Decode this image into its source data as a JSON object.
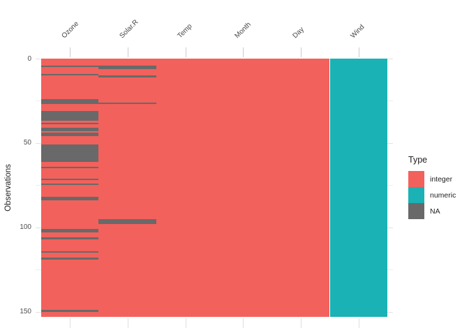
{
  "chart_data": {
    "type": "heatmap",
    "title": "",
    "ylabel": "Observations",
    "n_rows": 153,
    "y_ticks": [
      0,
      50,
      100,
      150
    ],
    "y_minor_ticks": [
      25,
      75,
      125
    ],
    "legend": {
      "title": "Type",
      "position": "right",
      "entries": [
        {
          "label": "integer",
          "color": "#F2615C"
        },
        {
          "label": "numeric",
          "color": "#1AB2B5"
        },
        {
          "label": "NA",
          "color": "#696969"
        }
      ]
    },
    "type_colors": {
      "integer": "#F2615C",
      "numeric": "#1AB2B5",
      "NA": "#696969"
    },
    "columns": [
      {
        "name": "Ozone",
        "type": "integer",
        "na_rows": [
          5,
          10,
          25,
          26,
          27,
          32,
          33,
          34,
          35,
          36,
          37,
          39,
          42,
          43,
          45,
          46,
          52,
          53,
          54,
          55,
          56,
          57,
          58,
          59,
          60,
          61,
          65,
          72,
          75,
          83,
          84,
          102,
          103,
          107,
          115,
          119,
          150
        ]
      },
      {
        "name": "Solar.R",
        "type": "integer",
        "na_rows": [
          5,
          6,
          11,
          27,
          96,
          97,
          98
        ]
      },
      {
        "name": "Temp",
        "type": "integer",
        "na_rows": []
      },
      {
        "name": "Month",
        "type": "integer",
        "na_rows": []
      },
      {
        "name": "Day",
        "type": "integer",
        "na_rows": []
      },
      {
        "name": "Wind",
        "type": "numeric",
        "na_rows": []
      }
    ],
    "grid": {
      "major_color": "#E2E2E2",
      "minor_color": "#EDEDED",
      "top_tick_color": "#CBCBCB",
      "bottom_tick_color": "#DFDFDF"
    }
  }
}
